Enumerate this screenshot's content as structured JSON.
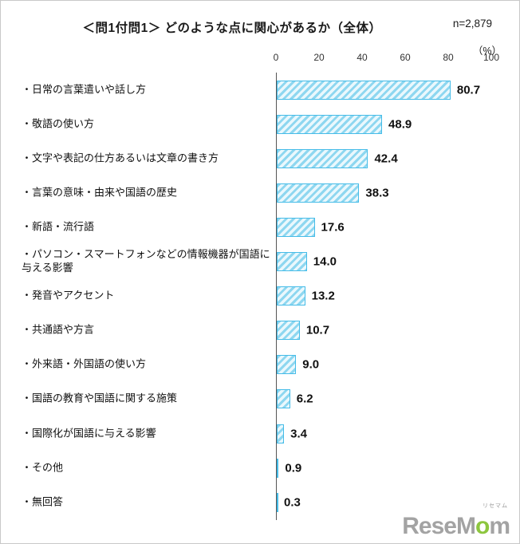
{
  "header": {
    "title": "＜問1付問1＞ どのような点に関心があるか（全体）",
    "sample_size": "n=2,879",
    "unit": "（%）"
  },
  "chart_data": {
    "type": "bar",
    "orientation": "horizontal",
    "title": "＜問1付問1＞ どのような点に関心があるか（全体）",
    "sample_size": "n=2,879",
    "unit": "%",
    "xlim": [
      0,
      100
    ],
    "xticks": [
      0,
      20,
      40,
      60,
      80,
      100
    ],
    "grid": false,
    "hatch": "diagonal-forward",
    "legend": "none",
    "categories": [
      "・日常の言葉遣いや話し方",
      "・敬語の使い方",
      "・文字や表記の仕方あるいは文章の書き方",
      "・言葉の意味・由来や国語の歴史",
      "・新語・流行語",
      "・パソコン・スマートフォンなどの情報機器が国語に与える影響",
      "・発音やアクセント",
      "・共通語や方言",
      "・外来語・外国語の使い方",
      "・国語の教育や国語に関する施策",
      "・国際化が国語に与える影響",
      "・その他",
      "・無回答"
    ],
    "values": [
      80.7,
      48.9,
      42.4,
      38.3,
      17.6,
      14.0,
      13.2,
      10.7,
      9.0,
      6.2,
      3.4,
      0.9,
      0.3
    ],
    "value_labels": [
      "80.7",
      "48.9",
      "42.4",
      "38.3",
      "17.6",
      "14.0",
      "13.2",
      "10.7",
      "9.0",
      "6.2",
      "3.4",
      "0.9",
      "0.3"
    ],
    "colors": {
      "bar_fill": "#eaf8fd",
      "bar_stripe": "#8ed7f0",
      "bar_border": "#45bce8",
      "axis": "#555555"
    }
  },
  "logo": {
    "part_gray_1": "Rese",
    "part_gray_2": "M",
    "part_green": "o",
    "part_gray_3": "m",
    "small_label": "リセマム",
    "color_gray": "#a3a3a3",
    "color_green": "#8dc63f"
  }
}
